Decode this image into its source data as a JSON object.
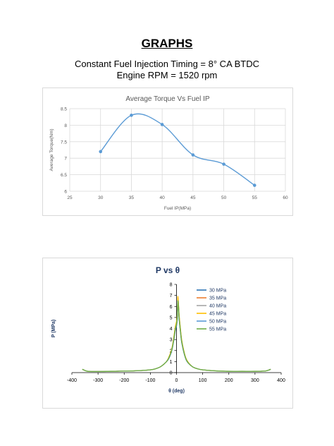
{
  "page": {
    "heading": "GRAPHS",
    "subtitle_line1": "Constant Fuel Injection Timing = 8° CA BTDC",
    "subtitle_line2": "Engine RPM = 1520 rpm"
  },
  "colors": {
    "series_torque": "#5b9bd5",
    "grid": "#d9d9d9",
    "axis_text": "#595959"
  },
  "chart_data": [
    {
      "type": "scatter",
      "title": "Average Torque Vs Fuel IP",
      "xlabel": "Fuel IP(MPa)",
      "ylabel": "Average Torque(Nm)",
      "xlim": [
        25,
        60
      ],
      "ylim": [
        6,
        8.5
      ],
      "xticks": [
        25,
        30,
        35,
        40,
        45,
        50,
        55,
        60
      ],
      "yticks": [
        6,
        6.5,
        7,
        7.5,
        8,
        8.5
      ],
      "smooth": true,
      "grid": true,
      "series": [
        {
          "x": [
            30,
            35,
            40,
            45,
            50,
            55
          ],
          "y": [
            7.2,
            8.3,
            8.02,
            7.1,
            6.82,
            6.18
          ]
        }
      ]
    },
    {
      "type": "line",
      "title": "P vs θ",
      "xlabel": "θ (deg)",
      "ylabel": "P (MPa)",
      "xlim": [
        -400,
        400
      ],
      "ylim": [
        0,
        8
      ],
      "xticks": [
        -400,
        -300,
        -200,
        -100,
        0,
        100,
        200,
        300,
        400
      ],
      "yticks": [
        0,
        1,
        2,
        3,
        4,
        5,
        6,
        7,
        8
      ],
      "grid": false,
      "legend": "right",
      "series": [
        {
          "name": "30 MPa",
          "color": "#2e75b6",
          "peak": 6.2
        },
        {
          "name": "35 MPa",
          "color": "#ed7d31",
          "peak": 6.8
        },
        {
          "name": "40 MPa",
          "color": "#a5a5a5",
          "peak": 6.6
        },
        {
          "name": "45 MPa",
          "color": "#ffc000",
          "peak": 6.9
        },
        {
          "name": "50 MPa",
          "color": "#5b9bd5",
          "peak": 6.4
        },
        {
          "name": "55 MPa",
          "color": "#70ad47",
          "peak": 6.5
        }
      ],
      "shape": {
        "theta": [
          -360,
          -340,
          -300,
          -250,
          -200,
          -150,
          -100,
          -80,
          -60,
          -40,
          -30,
          -20,
          -15,
          -10,
          -5,
          0,
          3,
          5,
          8,
          10,
          15,
          20,
          30,
          40,
          60,
          80,
          100,
          150,
          200,
          250,
          300,
          340,
          360
        ],
        "pressure": [
          0.3,
          0.12,
          0.1,
          0.12,
          0.14,
          0.17,
          0.25,
          0.35,
          0.55,
          0.95,
          1.3,
          1.9,
          2.4,
          3.1,
          3.9,
          4.4,
          5.0,
          6.5,
          5.8,
          5.0,
          3.8,
          2.8,
          1.7,
          1.05,
          0.55,
          0.35,
          0.25,
          0.16,
          0.12,
          0.12,
          0.12,
          0.15,
          0.3
        ]
      }
    }
  ]
}
